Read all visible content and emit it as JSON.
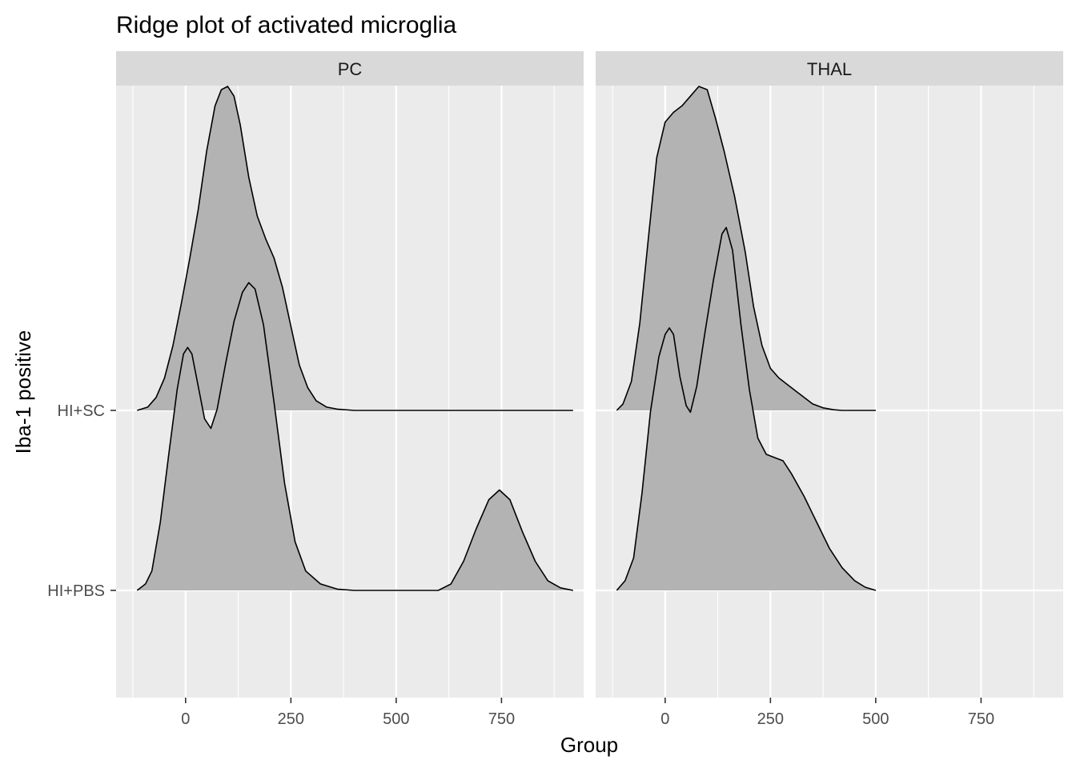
{
  "chart_data": {
    "type": "ridgeline",
    "title": "Ridge plot of activated microglia",
    "xlabel": "Group",
    "ylabel": "Iba-1 positive",
    "xlim": [
      -165,
      945
    ],
    "x_ticks": [
      0,
      250,
      500,
      750
    ],
    "y_categories": [
      "HI+PBS",
      "HI+SC"
    ],
    "fill_color": "#b3b3b3",
    "panel_bg": "#ebebeb",
    "strip_bg": "#d9d9d9",
    "panels": [
      {
        "name": "PC",
        "series": [
          {
            "name": "HI+SC",
            "points": [
              [
                -115,
                0.0
              ],
              [
                -90,
                0.01
              ],
              [
                -70,
                0.04
              ],
              [
                -50,
                0.1
              ],
              [
                -30,
                0.2
              ],
              [
                -10,
                0.33
              ],
              [
                10,
                0.47
              ],
              [
                30,
                0.62
              ],
              [
                50,
                0.8
              ],
              [
                70,
                0.94
              ],
              [
                85,
                0.99
              ],
              [
                100,
                1.0
              ],
              [
                115,
                0.97
              ],
              [
                130,
                0.88
              ],
              [
                150,
                0.72
              ],
              [
                170,
                0.6
              ],
              [
                190,
                0.53
              ],
              [
                210,
                0.47
              ],
              [
                230,
                0.38
              ],
              [
                250,
                0.26
              ],
              [
                270,
                0.14
              ],
              [
                290,
                0.07
              ],
              [
                310,
                0.03
              ],
              [
                335,
                0.01
              ],
              [
                360,
                0.004
              ],
              [
                400,
                0.0
              ],
              [
                920,
                0.0
              ]
            ]
          },
          {
            "name": "HI+PBS",
            "points": [
              [
                -115,
                0.0
              ],
              [
                -95,
                0.02
              ],
              [
                -80,
                0.06
              ],
              [
                -60,
                0.21
              ],
              [
                -40,
                0.42
              ],
              [
                -20,
                0.62
              ],
              [
                -5,
                0.73
              ],
              [
                5,
                0.75
              ],
              [
                15,
                0.73
              ],
              [
                30,
                0.63
              ],
              [
                45,
                0.53
              ],
              [
                60,
                0.5
              ],
              [
                75,
                0.56
              ],
              [
                95,
                0.7
              ],
              [
                115,
                0.83
              ],
              [
                135,
                0.92
              ],
              [
                150,
                0.95
              ],
              [
                165,
                0.93
              ],
              [
                185,
                0.82
              ],
              [
                210,
                0.58
              ],
              [
                235,
                0.33
              ],
              [
                260,
                0.15
              ],
              [
                285,
                0.06
              ],
              [
                320,
                0.02
              ],
              [
                360,
                0.004
              ],
              [
                400,
                0.0
              ],
              [
                600,
                0.0
              ],
              [
                630,
                0.02
              ],
              [
                660,
                0.09
              ],
              [
                690,
                0.19
              ],
              [
                720,
                0.28
              ],
              [
                745,
                0.31
              ],
              [
                770,
                0.28
              ],
              [
                800,
                0.18
              ],
              [
                830,
                0.09
              ],
              [
                860,
                0.03
              ],
              [
                890,
                0.008
              ],
              [
                920,
                0.0
              ]
            ]
          }
        ]
      },
      {
        "name": "THAL",
        "series": [
          {
            "name": "HI+SC",
            "points": [
              [
                -115,
                0.0
              ],
              [
                -100,
                0.02
              ],
              [
                -80,
                0.09
              ],
              [
                -60,
                0.27
              ],
              [
                -40,
                0.53
              ],
              [
                -20,
                0.78
              ],
              [
                0,
                0.89
              ],
              [
                20,
                0.92
              ],
              [
                40,
                0.94
              ],
              [
                60,
                0.97
              ],
              [
                80,
                1.0
              ],
              [
                100,
                0.99
              ],
              [
                120,
                0.9
              ],
              [
                140,
                0.8
              ],
              [
                165,
                0.66
              ],
              [
                190,
                0.49
              ],
              [
                210,
                0.32
              ],
              [
                230,
                0.2
              ],
              [
                250,
                0.13
              ],
              [
                270,
                0.1
              ],
              [
                290,
                0.08
              ],
              [
                310,
                0.06
              ],
              [
                330,
                0.04
              ],
              [
                350,
                0.02
              ],
              [
                375,
                0.008
              ],
              [
                400,
                0.002
              ],
              [
                420,
                0.0
              ],
              [
                500,
                0.0
              ]
            ]
          },
          {
            "name": "HI+PBS",
            "points": [
              [
                -115,
                0.0
              ],
              [
                -95,
                0.03
              ],
              [
                -75,
                0.1
              ],
              [
                -55,
                0.3
              ],
              [
                -35,
                0.55
              ],
              [
                -15,
                0.72
              ],
              [
                0,
                0.79
              ],
              [
                10,
                0.81
              ],
              [
                20,
                0.79
              ],
              [
                35,
                0.66
              ],
              [
                50,
                0.57
              ],
              [
                60,
                0.55
              ],
              [
                75,
                0.63
              ],
              [
                95,
                0.8
              ],
              [
                115,
                0.96
              ],
              [
                135,
                1.1
              ],
              [
                145,
                1.12
              ],
              [
                160,
                1.05
              ],
              [
                180,
                0.82
              ],
              [
                200,
                0.62
              ],
              [
                220,
                0.47
              ],
              [
                240,
                0.42
              ],
              [
                260,
                0.41
              ],
              [
                280,
                0.4
              ],
              [
                300,
                0.36
              ],
              [
                330,
                0.29
              ],
              [
                360,
                0.21
              ],
              [
                390,
                0.13
              ],
              [
                420,
                0.07
              ],
              [
                450,
                0.03
              ],
              [
                475,
                0.01
              ],
              [
                500,
                0.0
              ]
            ]
          }
        ]
      }
    ]
  }
}
